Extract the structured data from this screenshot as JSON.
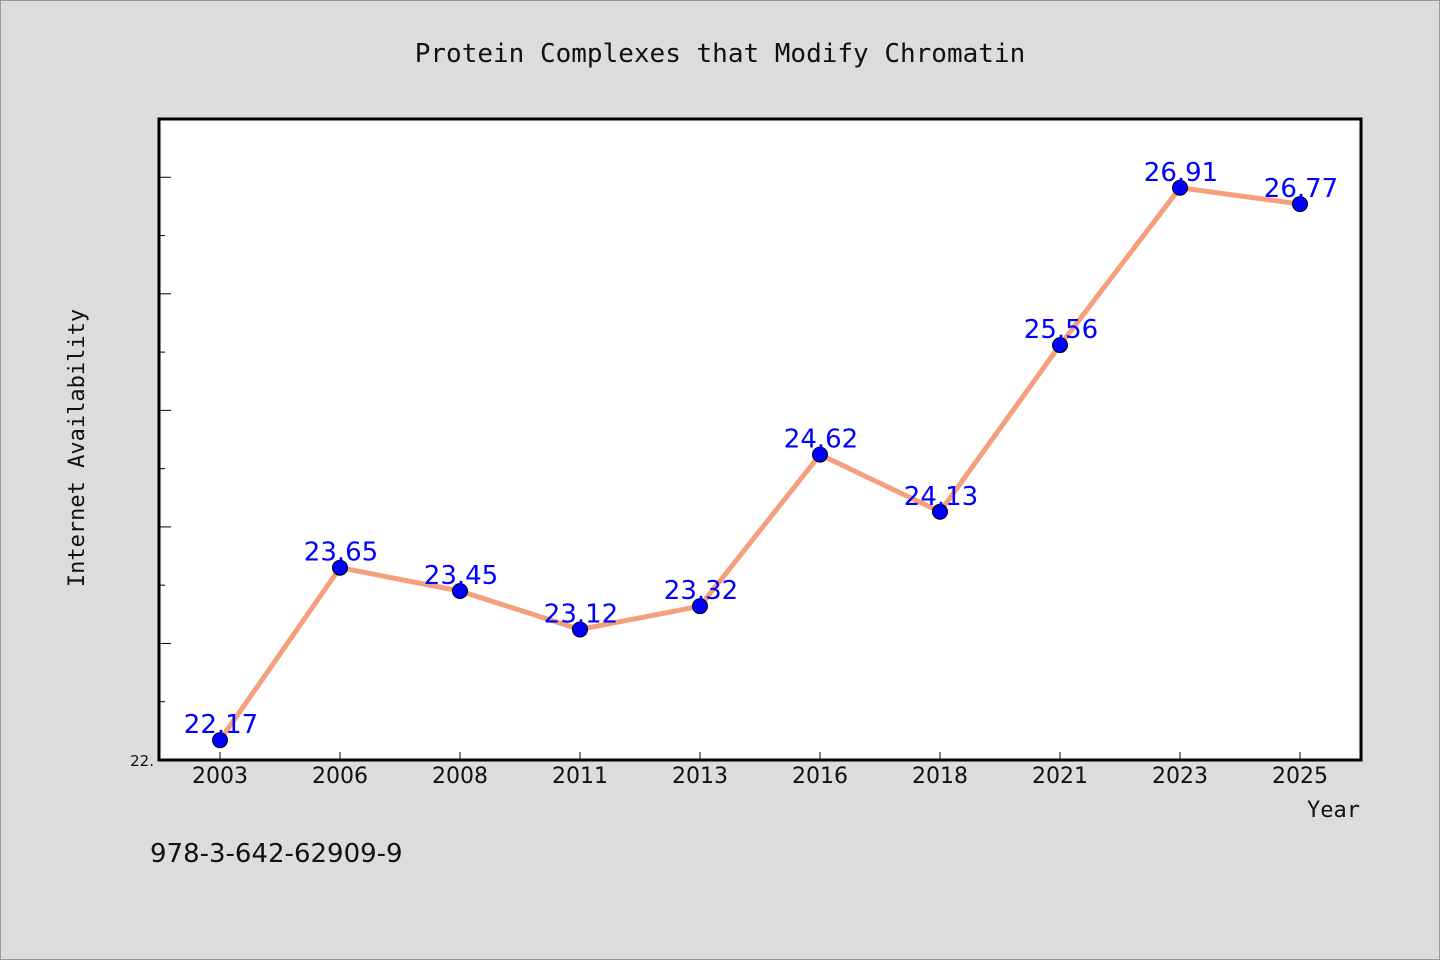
{
  "chart_data": {
    "type": "line",
    "title": "Protein Complexes that Modify Chromatin",
    "xlabel": "Year",
    "ylabel": "Internet Availability",
    "categories": [
      "2003",
      "2006",
      "2008",
      "2011",
      "2013",
      "2016",
      "2018",
      "2021",
      "2023",
      "2025"
    ],
    "series": [
      {
        "values": [
          22.17,
          23.65,
          23.45,
          23.12,
          23.32,
          24.62,
          24.13,
          25.56,
          26.91,
          26.77
        ]
      }
    ],
    "ylim": [
      22.0,
      27.5
    ],
    "y_tick_labels": [
      "22."
    ],
    "grid": false,
    "legend": "none",
    "colors": {
      "line": "#f4a07e",
      "marker": "#0000ff",
      "data_label": "#0000ff",
      "plot_background": "#ffffff",
      "figure_background": "#dcdcdc"
    }
  },
  "footer": {
    "isbn": "978-3-642-62909-9"
  }
}
